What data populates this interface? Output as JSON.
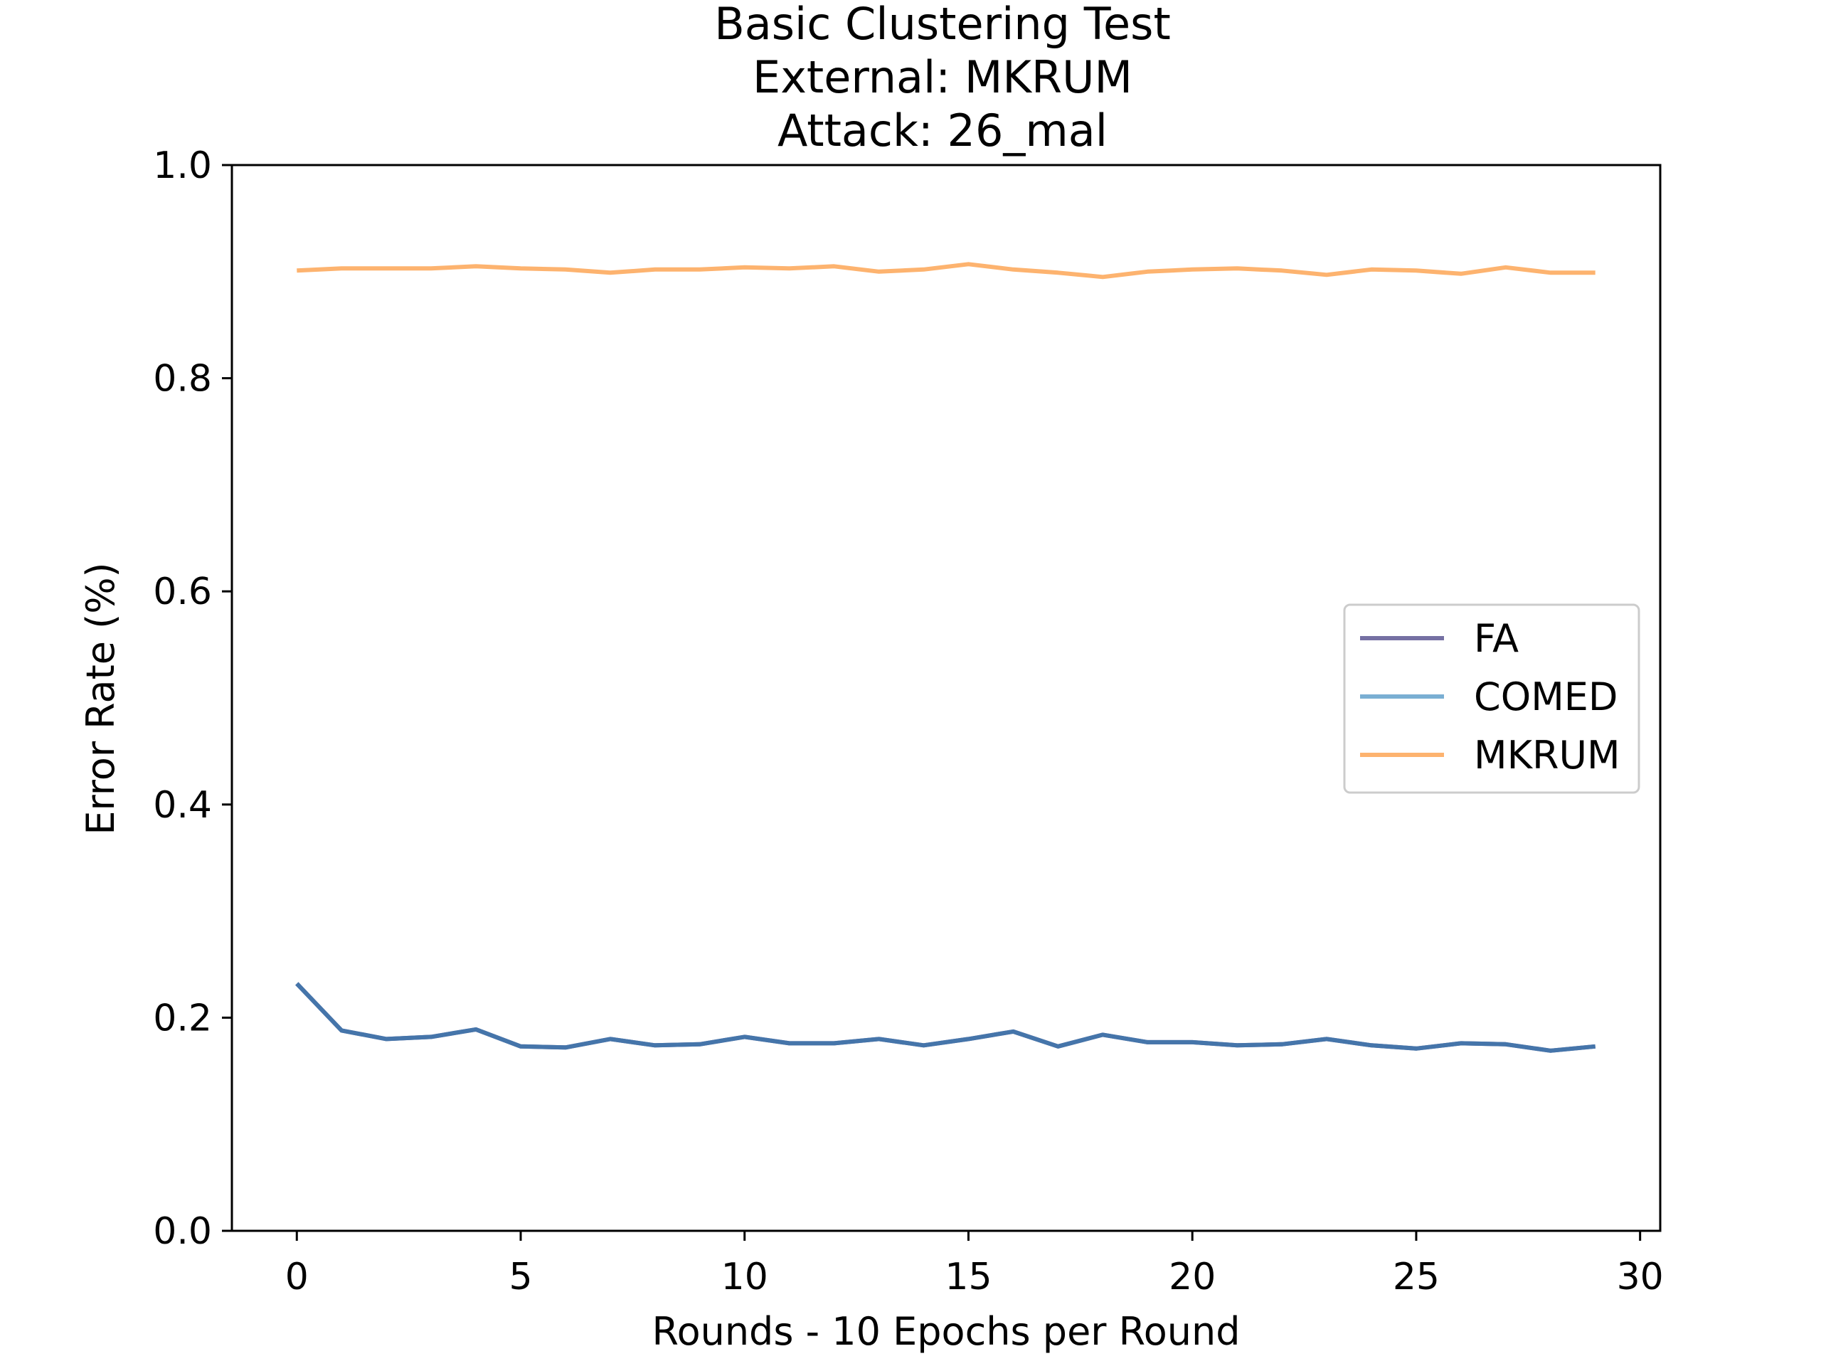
{
  "chart_data": {
    "type": "line",
    "title": [
      "Basic Clustering Test",
      "External: MKRUM",
      "Attack: 26_mal"
    ],
    "xlabel": "Rounds - 10 Epochs per Round",
    "ylabel": "Error Rate (%)",
    "xlim": [
      -1.45,
      30.45
    ],
    "ylim": [
      0,
      1
    ],
    "xticks": [
      0,
      5,
      10,
      15,
      20,
      25,
      30
    ],
    "xtick_labels": [
      "0",
      "5",
      "10",
      "15",
      "20",
      "25",
      "30"
    ],
    "yticks": [
      0,
      0.2,
      0.4,
      0.6,
      0.8,
      1.0
    ],
    "ytick_labels": [
      "0.0",
      "0.2",
      "0.4",
      "0.6",
      "0.8",
      "1.0"
    ],
    "grid": false,
    "legend_position": "center-right",
    "x": [
      0,
      1,
      2,
      3,
      4,
      5,
      6,
      7,
      8,
      9,
      10,
      11,
      12,
      13,
      14,
      15,
      16,
      17,
      18,
      19,
      20,
      21,
      22,
      23,
      24,
      25,
      26,
      27,
      28,
      29
    ],
    "series": [
      {
        "name": "FA",
        "color": "#7570a3",
        "values": [
          0.232,
          0.188,
          0.18,
          0.182,
          0.189,
          0.173,
          0.172,
          0.18,
          0.174,
          0.175,
          0.182,
          0.176,
          0.176,
          0.18,
          0.174,
          0.18,
          0.187,
          0.173,
          0.184,
          0.177,
          0.177,
          0.174,
          0.175,
          0.18,
          0.174,
          0.171,
          0.176,
          0.175,
          0.169,
          0.173
        ]
      },
      {
        "name": "COMED",
        "color": "#7aafd3",
        "values": [
          0.232,
          0.188,
          0.18,
          0.182,
          0.189,
          0.173,
          0.172,
          0.18,
          0.174,
          0.175,
          0.182,
          0.176,
          0.176,
          0.18,
          0.174,
          0.18,
          0.187,
          0.173,
          0.184,
          0.177,
          0.177,
          0.174,
          0.175,
          0.18,
          0.174,
          0.171,
          0.176,
          0.175,
          0.169,
          0.173
        ]
      },
      {
        "name": "MKRUM",
        "color": "#fdb36f",
        "values": [
          0.901,
          0.903,
          0.903,
          0.903,
          0.905,
          0.903,
          0.902,
          0.899,
          0.902,
          0.902,
          0.904,
          0.903,
          0.905,
          0.9,
          0.902,
          0.907,
          0.902,
          0.899,
          0.895,
          0.9,
          0.902,
          0.903,
          0.901,
          0.897,
          0.902,
          0.901,
          0.898,
          0.904,
          0.899,
          0.899
        ]
      }
    ],
    "overlap_color": "#4575aa"
  }
}
